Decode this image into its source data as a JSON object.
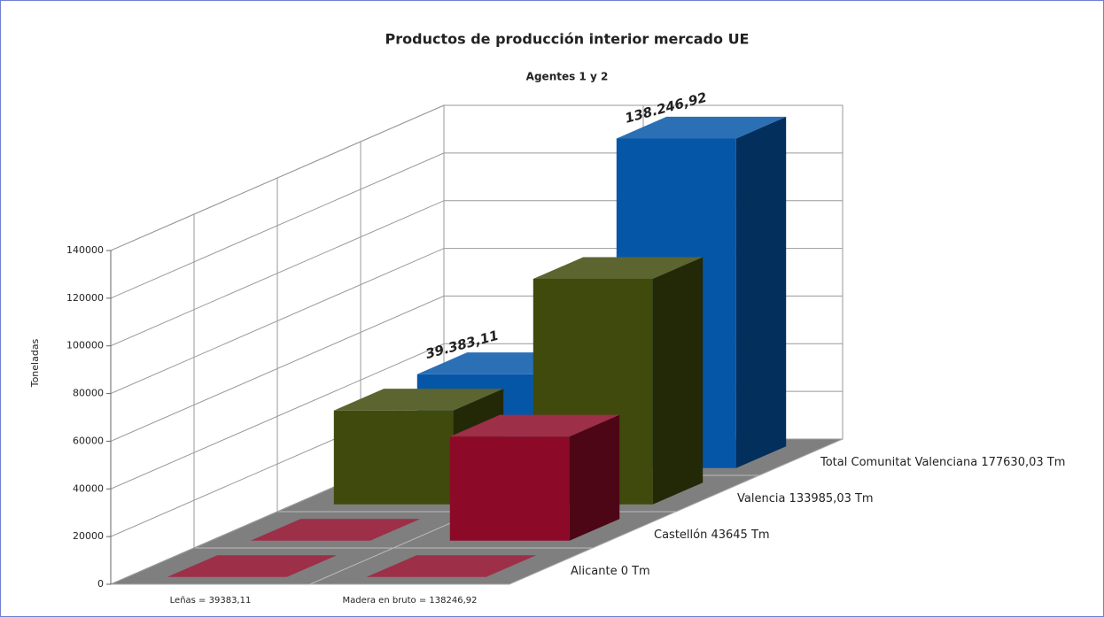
{
  "chart_data": {
    "type": "bar3d",
    "title": "Productos de producción interior mercado UE",
    "subtitle": "Agentes 1 y 2",
    "y_label": "Toneladas",
    "categories": [
      "Leñas = 39383,11",
      "Madera en bruto = 138246,92"
    ],
    "series": [
      {
        "name": "Alicante 0 Tm",
        "color": "#8c0a28",
        "values": [
          0,
          0
        ]
      },
      {
        "name": "Castellón 43645 Tm",
        "color": "#8c0a28",
        "values": [
          0,
          43645
        ]
      },
      {
        "name": "Valencia 133985,03 Tm",
        "color": "#3f4a0c",
        "values": [
          39383.11,
          94601.92
        ]
      },
      {
        "name": "Total Comunitat Valenciana 177630,03 Tm",
        "color": "#0656a8",
        "values": [
          39383.11,
          138246.92
        ],
        "value_labels": [
          "39.383,11",
          "138.246,92"
        ]
      }
    ],
    "ylim": [
      0,
      140000
    ],
    "yticks": [
      0,
      20000,
      40000,
      60000,
      80000,
      100000,
      120000,
      140000
    ],
    "grid": true
  }
}
